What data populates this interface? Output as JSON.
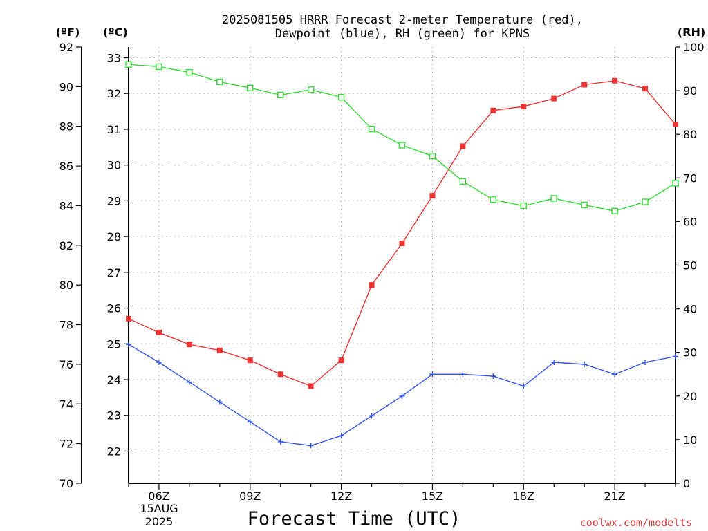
{
  "header": {
    "title_line1": "2025081505 HRRR Forecast 2-meter Temperature (red),",
    "title_line2": "Dewpoint (blue), RH (green) for KPNS",
    "unit_f": "(ºF)",
    "unit_c": "(ºC)",
    "unit_rh": "(RH)"
  },
  "footer": {
    "xlabel": "Forecast Time (UTC)",
    "credit": "coolwx.com/modelts",
    "date_day": "15AUG",
    "date_year": "2025"
  },
  "chart_data": {
    "type": "line",
    "title": "2025081505 HRRR Forecast 2-meter Temperature (red), Dewpoint (blue), RH (green) for KPNS",
    "xlabel": "Forecast Time (UTC)",
    "x_hours_utc": [
      5,
      6,
      7,
      8,
      9,
      10,
      11,
      12,
      13,
      14,
      15,
      16,
      17,
      18,
      19,
      20,
      21,
      22,
      23
    ],
    "xlim": [
      5,
      23
    ],
    "x_ticks": [
      {
        "hour": 6,
        "label": "06Z"
      },
      {
        "hour": 9,
        "label": "09Z"
      },
      {
        "hour": 12,
        "label": "12Z"
      },
      {
        "hour": 15,
        "label": "15Z"
      },
      {
        "hour": 18,
        "label": "18Z"
      },
      {
        "hour": 21,
        "label": "21Z"
      }
    ],
    "ylim_f": [
      70,
      92
    ],
    "ylim_c": [
      21.1,
      33.3
    ],
    "ylim_rh": [
      0,
      100
    ],
    "yticks_f": [
      70,
      72,
      74,
      76,
      78,
      80,
      82,
      84,
      86,
      88,
      90,
      92
    ],
    "yticks_c": [
      22,
      23,
      24,
      25,
      26,
      27,
      28,
      29,
      30,
      31,
      32,
      33
    ],
    "yticks_rh": [
      0,
      10,
      20,
      30,
      40,
      50,
      60,
      70,
      80,
      90,
      100
    ],
    "grid": true,
    "series": [
      {
        "key": "temperature",
        "axis": "F",
        "color": "#ee3333",
        "marker": "filled-square",
        "values": [
          78.3,
          77.6,
          77.0,
          76.7,
          76.2,
          75.5,
          74.9,
          76.2,
          80.0,
          82.1,
          84.5,
          87.0,
          88.8,
          89.0,
          89.4,
          90.1,
          90.3,
          89.9,
          88.1
        ]
      },
      {
        "key": "dewpoint",
        "axis": "F",
        "color": "#3355ee",
        "marker": "plus",
        "values": [
          77.0,
          76.1,
          75.1,
          74.1,
          73.1,
          72.1,
          71.9,
          72.4,
          73.4,
          74.4,
          75.5,
          75.5,
          75.4,
          74.9,
          76.1,
          76.0,
          75.5,
          76.1,
          76.4
        ]
      },
      {
        "key": "rh",
        "axis": "RH",
        "color": "#33dd33",
        "marker": "open-square",
        "values": [
          96.0,
          95.5,
          94.2,
          92.0,
          90.6,
          89.0,
          90.2,
          88.5,
          81.2,
          77.5,
          75.0,
          69.2,
          65.0,
          63.6,
          65.3,
          63.8,
          62.4,
          64.5,
          68.8
        ]
      }
    ]
  }
}
